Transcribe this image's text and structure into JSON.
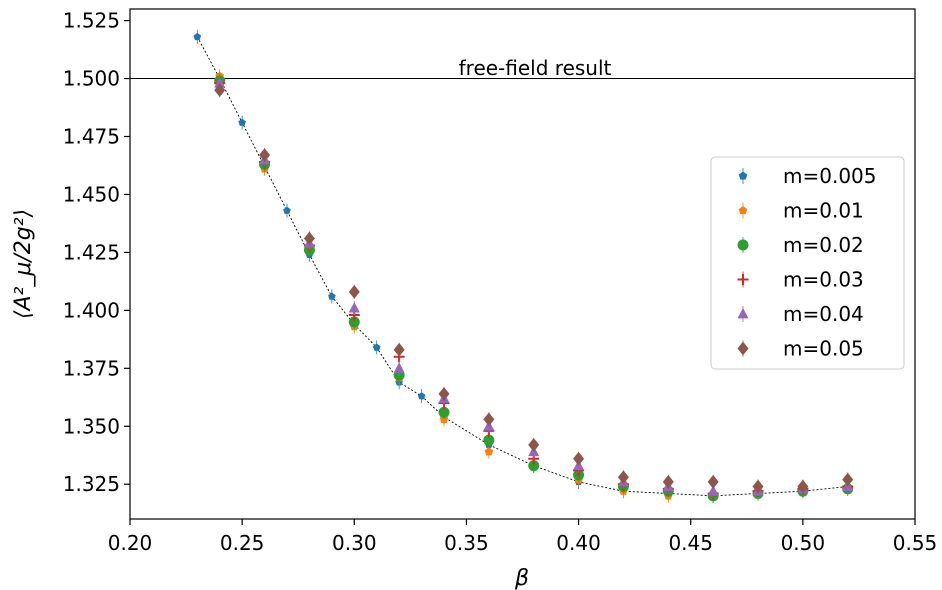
{
  "chart_data": {
    "type": "scatter",
    "title": "",
    "xlabel": "β",
    "ylabel": "⟨A²_μ/2g²⟩",
    "xlim": [
      0.2,
      0.55
    ],
    "ylim": [
      1.31,
      1.53
    ],
    "x_ticks": [
      "0.20",
      "0.25",
      "0.30",
      "0.35",
      "0.40",
      "0.45",
      "0.50",
      "0.55"
    ],
    "y_ticks": [
      "1.325",
      "1.350",
      "1.375",
      "1.400",
      "1.425",
      "1.450",
      "1.475",
      "1.500",
      "1.525"
    ],
    "grid": false,
    "legend_position": "right",
    "reference_line": {
      "y": 1.5,
      "label": "free-field result"
    },
    "series": [
      {
        "name": "m=0.005",
        "marker": "pentagon",
        "color": "#1f77b4",
        "x": [
          0.23,
          0.24,
          0.25,
          0.26,
          0.27,
          0.28,
          0.29,
          0.3,
          0.31,
          0.32,
          0.33,
          0.34,
          0.36,
          0.38,
          0.4,
          0.42,
          0.44,
          0.46,
          0.48,
          0.5,
          0.52
        ],
        "y": [
          1.518,
          1.5,
          1.481,
          1.462,
          1.443,
          1.424,
          1.406,
          1.394,
          1.384,
          1.369,
          1.363,
          1.354,
          1.342,
          1.333,
          1.326,
          1.322,
          1.321,
          1.32,
          1.321,
          1.322,
          1.324
        ]
      },
      {
        "name": "m=0.01",
        "marker": "pentagon",
        "color": "#ff7f0e",
        "x": [
          0.24,
          0.26,
          0.28,
          0.3,
          0.32,
          0.34,
          0.36,
          0.38,
          0.4,
          0.42,
          0.44,
          0.46,
          0.48,
          0.5,
          0.52
        ],
        "y": [
          1.501,
          1.461,
          1.428,
          1.393,
          1.371,
          1.353,
          1.339,
          1.333,
          1.327,
          1.322,
          1.32,
          1.32,
          1.321,
          1.322,
          1.323
        ]
      },
      {
        "name": "m=0.02",
        "marker": "circle",
        "color": "#2ca02c",
        "x": [
          0.24,
          0.26,
          0.28,
          0.3,
          0.32,
          0.34,
          0.36,
          0.38,
          0.4,
          0.42,
          0.44,
          0.46,
          0.48,
          0.5,
          0.52
        ],
        "y": [
          1.499,
          1.463,
          1.426,
          1.395,
          1.372,
          1.356,
          1.344,
          1.333,
          1.329,
          1.324,
          1.322,
          1.32,
          1.321,
          1.322,
          1.323
        ]
      },
      {
        "name": "m=0.03",
        "marker": "plus",
        "color": "#d62728",
        "x": [
          0.24,
          0.26,
          0.28,
          0.3,
          0.32,
          0.34,
          0.36,
          0.38,
          0.4,
          0.42,
          0.44,
          0.46,
          0.48,
          0.5,
          0.52
        ],
        "y": [
          1.498,
          1.464,
          1.428,
          1.398,
          1.38,
          1.36,
          1.348,
          1.336,
          1.331,
          1.325,
          1.323,
          1.321,
          1.322,
          1.323,
          1.324
        ]
      },
      {
        "name": "m=0.04",
        "marker": "triangle-up",
        "color": "#9467bd",
        "x": [
          0.24,
          0.26,
          0.28,
          0.3,
          0.32,
          0.34,
          0.36,
          0.38,
          0.4,
          0.42,
          0.44,
          0.46,
          0.48,
          0.5,
          0.52
        ],
        "y": [
          1.498,
          1.465,
          1.429,
          1.401,
          1.375,
          1.362,
          1.35,
          1.339,
          1.333,
          1.326,
          1.324,
          1.322,
          1.322,
          1.323,
          1.324
        ]
      },
      {
        "name": "m=0.05",
        "marker": "diamond",
        "color": "#8c564b",
        "x": [
          0.24,
          0.26,
          0.28,
          0.3,
          0.32,
          0.34,
          0.36,
          0.38,
          0.4,
          0.42,
          0.44,
          0.46,
          0.48,
          0.5,
          0.52
        ],
        "y": [
          1.495,
          1.467,
          1.431,
          1.408,
          1.383,
          1.364,
          1.353,
          1.342,
          1.336,
          1.328,
          1.326,
          1.326,
          1.324,
          1.324,
          1.327
        ]
      }
    ]
  }
}
